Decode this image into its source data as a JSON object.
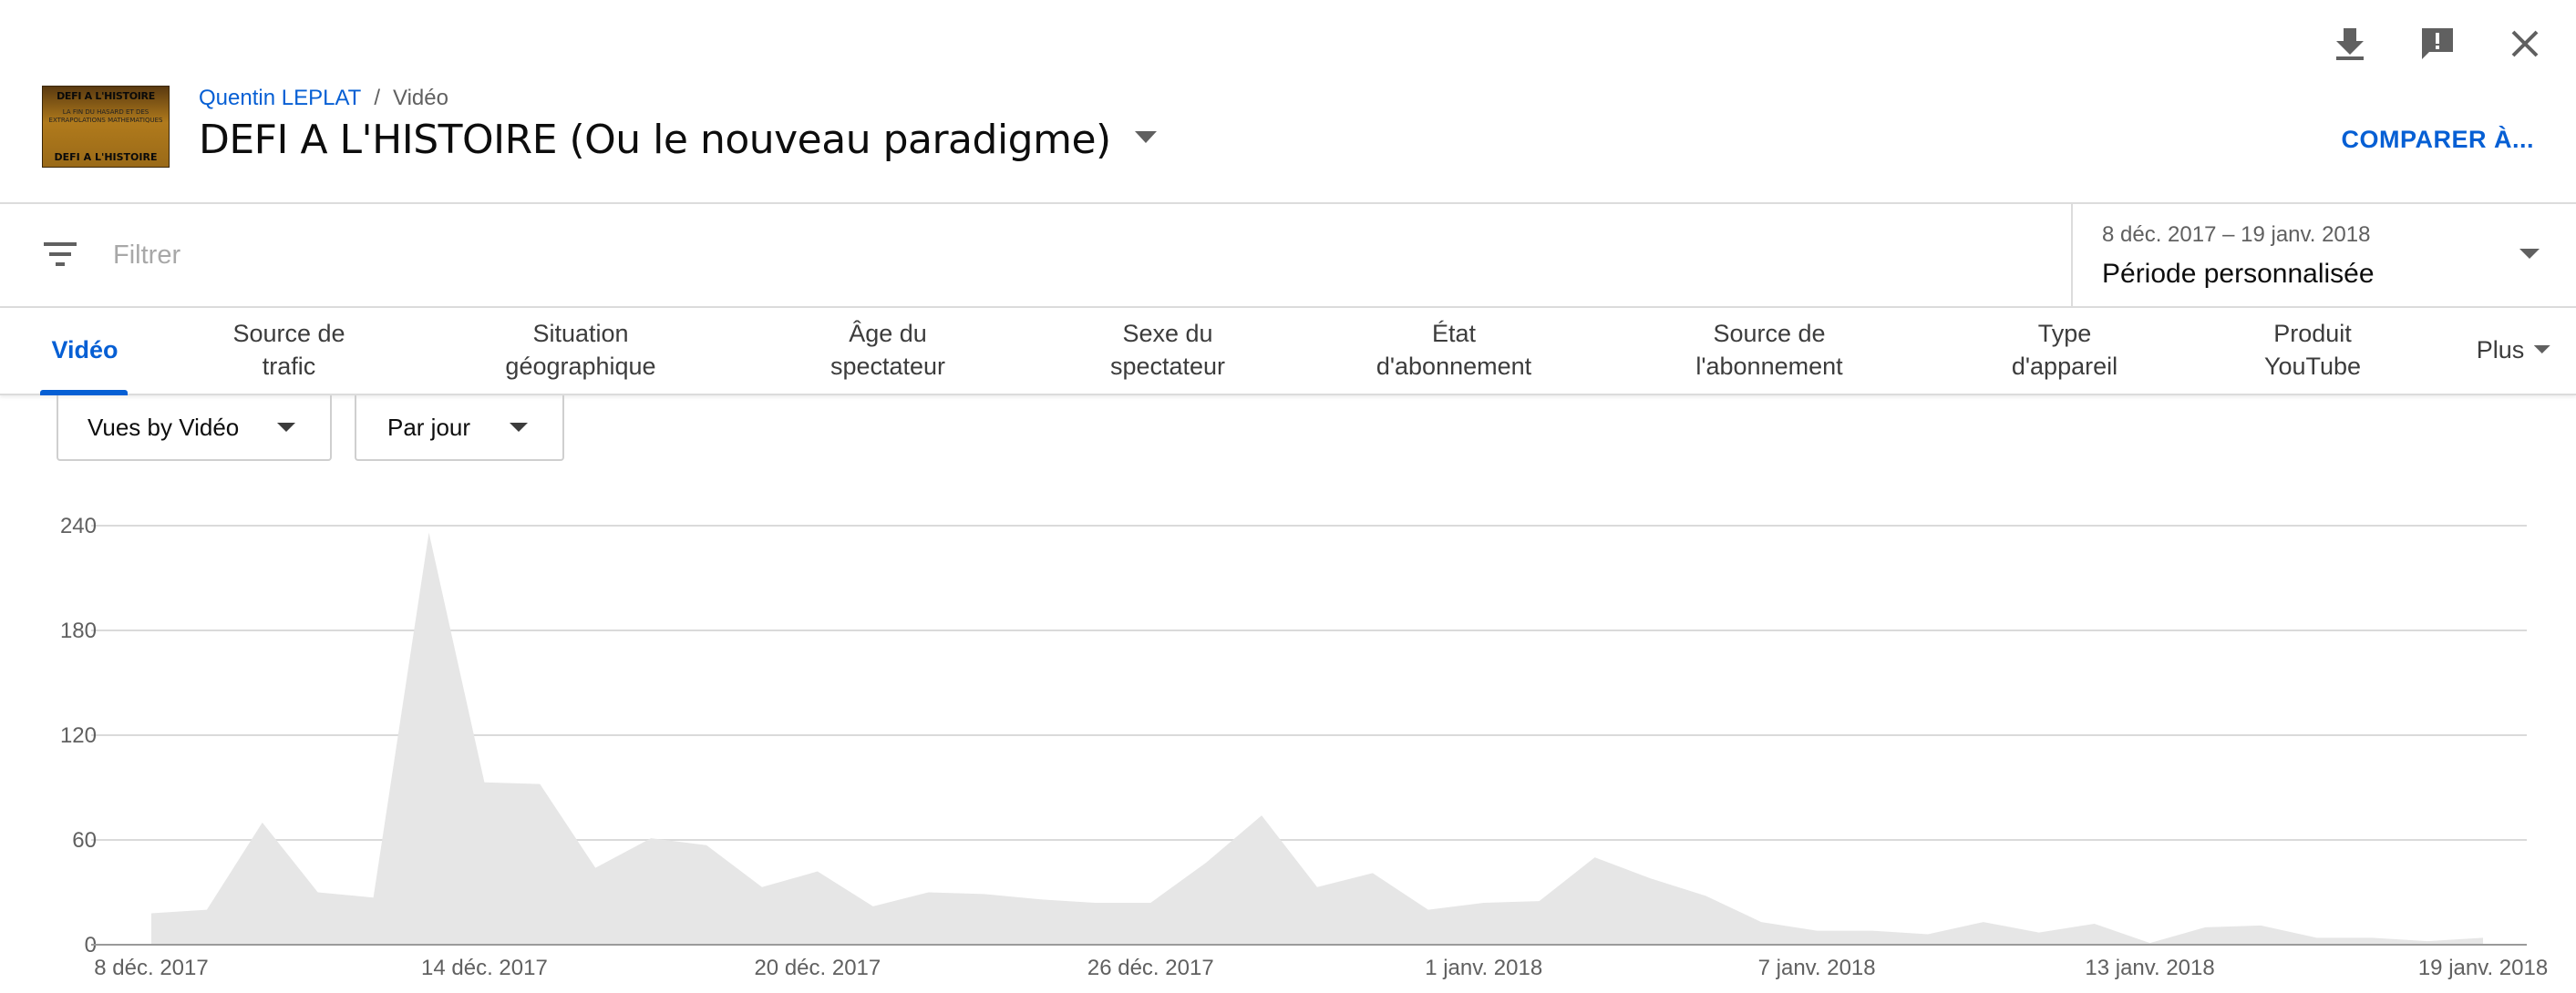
{
  "top_icons": [
    "download-icon",
    "feedback-icon",
    "close-icon"
  ],
  "header": {
    "thumbnail": {
      "line1": "DEFI A L'HISTOIRE",
      "line2": "LA FIN DU HASARD ET DES EXTRAPOLATIONS MATHEMATIQUES",
      "line3": "DEFI A L'HISTOIRE"
    },
    "breadcrumb_channel": "Quentin LEPLAT",
    "breadcrumb_sep": "/",
    "breadcrumb_page": "Vidéo",
    "title": "DEFI A L'HISTOIRE (Ou le nouveau paradigme)",
    "compare_label": "COMPARER À..."
  },
  "filter": {
    "placeholder": "Filtrer",
    "date_range": "8 déc. 2017 – 19 janv. 2018",
    "period_label": "Période personnalisée"
  },
  "tabs": [
    {
      "l1": "Vidéo",
      "l2": ""
    },
    {
      "l1": "Source de",
      "l2": "trafic"
    },
    {
      "l1": "Situation",
      "l2": "géographique"
    },
    {
      "l1": "Âge du",
      "l2": "spectateur"
    },
    {
      "l1": "Sexe du",
      "l2": "spectateur"
    },
    {
      "l1": "État",
      "l2": "d'abonnement"
    },
    {
      "l1": "Source de",
      "l2": "l'abonnement"
    },
    {
      "l1": "Type",
      "l2": "d'appareil"
    },
    {
      "l1": "Produit",
      "l2": "YouTube"
    }
  ],
  "tab_more": "Plus",
  "selects": {
    "metric": "Vues by Vidéo",
    "granularity": "Par jour"
  },
  "colors": {
    "accent": "#065fd4",
    "area_fill": "#e6e6e6",
    "grid": "#dadada"
  },
  "chart_data": {
    "type": "area",
    "ylim": [
      0,
      240
    ],
    "yticks": [
      0,
      60,
      120,
      180,
      240
    ],
    "x_tick_labels": [
      "8 déc. 2017",
      "14 déc. 2017",
      "20 déc. 2017",
      "26 déc. 2017",
      "1 janv. 2018",
      "7 janv. 2018",
      "13 janv. 2018",
      "19 janv. 2018"
    ],
    "x_tick_indices": [
      0,
      6,
      12,
      18,
      24,
      30,
      36,
      42
    ],
    "grid": true,
    "series": [
      {
        "values": [
          18,
          20,
          70,
          30,
          27,
          236,
          93,
          92,
          44,
          61,
          57,
          33,
          42,
          22,
          30,
          29,
          26,
          24,
          24,
          47,
          74,
          33,
          41,
          20,
          24,
          25,
          50,
          38,
          28,
          13,
          8,
          8,
          6,
          13,
          7,
          12,
          1,
          10,
          11,
          4,
          4,
          2,
          4
        ]
      }
    ]
  }
}
